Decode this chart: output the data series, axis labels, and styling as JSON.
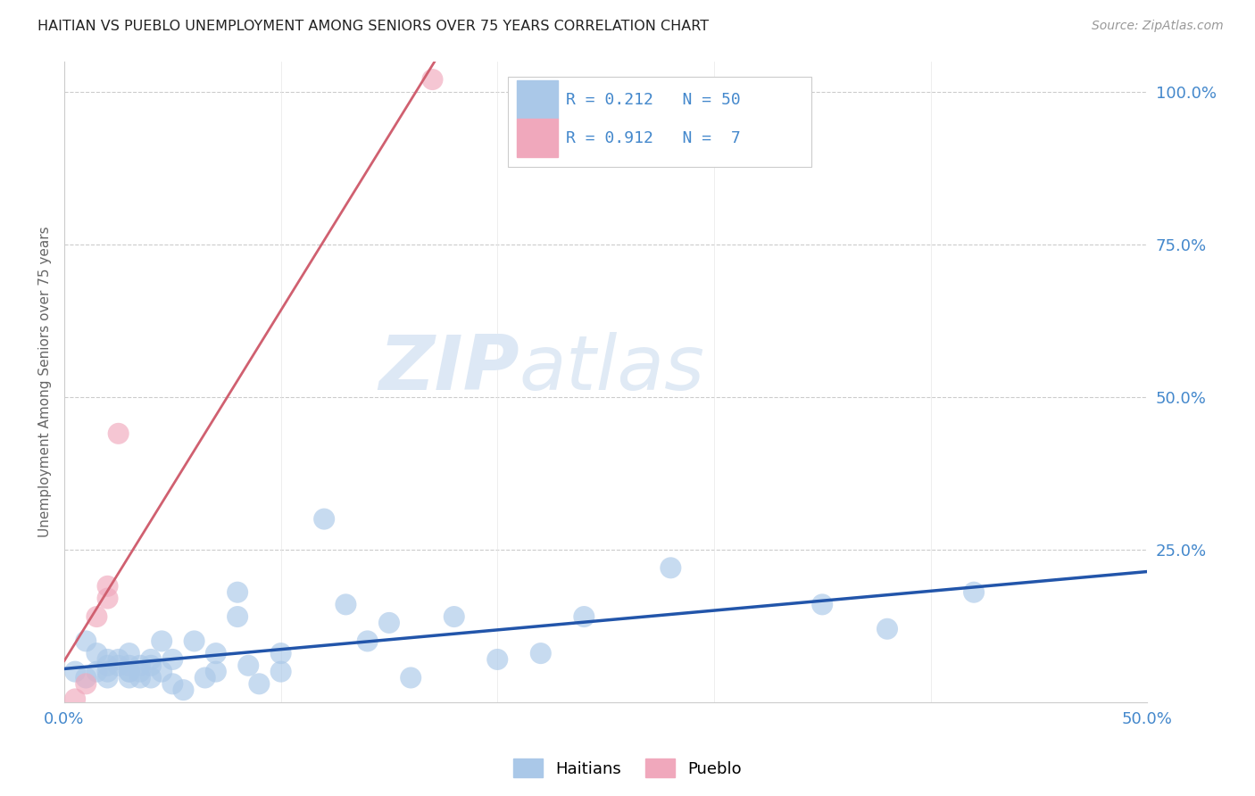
{
  "title": "HAITIAN VS PUEBLO UNEMPLOYMENT AMONG SENIORS OVER 75 YEARS CORRELATION CHART",
  "source": "Source: ZipAtlas.com",
  "ylabel": "Unemployment Among Seniors over 75 years",
  "xlim": [
    0.0,
    0.5
  ],
  "ylim": [
    0.0,
    1.05
  ],
  "yticks_right": [
    0.0,
    0.25,
    0.5,
    0.75,
    1.0
  ],
  "ytick_right_labels": [
    "",
    "25.0%",
    "50.0%",
    "75.0%",
    "100.0%"
  ],
  "haitian_R": 0.212,
  "haitian_N": 50,
  "pueblo_R": 0.912,
  "pueblo_N": 7,
  "background_color": "#ffffff",
  "haitian_color": "#aac8e8",
  "haitian_line_color": "#2255aa",
  "pueblo_color": "#f0a8bc",
  "pueblo_line_color": "#d06070",
  "watermark_zip": "ZIP",
  "watermark_atlas": "atlas",
  "watermark_color": "#dde8f5",
  "legend_R_color": "#4488cc",
  "grid_color": "#cccccc",
  "haitian_x": [
    0.005,
    0.01,
    0.01,
    0.015,
    0.015,
    0.02,
    0.02,
    0.02,
    0.02,
    0.025,
    0.025,
    0.03,
    0.03,
    0.03,
    0.03,
    0.03,
    0.035,
    0.035,
    0.035,
    0.04,
    0.04,
    0.04,
    0.045,
    0.045,
    0.05,
    0.05,
    0.055,
    0.06,
    0.065,
    0.07,
    0.07,
    0.08,
    0.08,
    0.085,
    0.09,
    0.1,
    0.1,
    0.12,
    0.13,
    0.14,
    0.15,
    0.16,
    0.18,
    0.2,
    0.22,
    0.24,
    0.28,
    0.35,
    0.38,
    0.42
  ],
  "haitian_y": [
    0.05,
    0.04,
    0.1,
    0.08,
    0.05,
    0.06,
    0.07,
    0.05,
    0.04,
    0.07,
    0.06,
    0.05,
    0.05,
    0.04,
    0.08,
    0.06,
    0.04,
    0.06,
    0.05,
    0.07,
    0.06,
    0.04,
    0.1,
    0.05,
    0.07,
    0.03,
    0.02,
    0.1,
    0.04,
    0.05,
    0.08,
    0.14,
    0.18,
    0.06,
    0.03,
    0.08,
    0.05,
    0.3,
    0.16,
    0.1,
    0.13,
    0.04,
    0.14,
    0.07,
    0.08,
    0.14,
    0.22,
    0.16,
    0.12,
    0.18
  ],
  "pueblo_x": [
    0.005,
    0.01,
    0.015,
    0.02,
    0.02,
    0.025,
    0.17
  ],
  "pueblo_y": [
    0.005,
    0.03,
    0.14,
    0.17,
    0.19,
    0.44,
    1.02
  ]
}
